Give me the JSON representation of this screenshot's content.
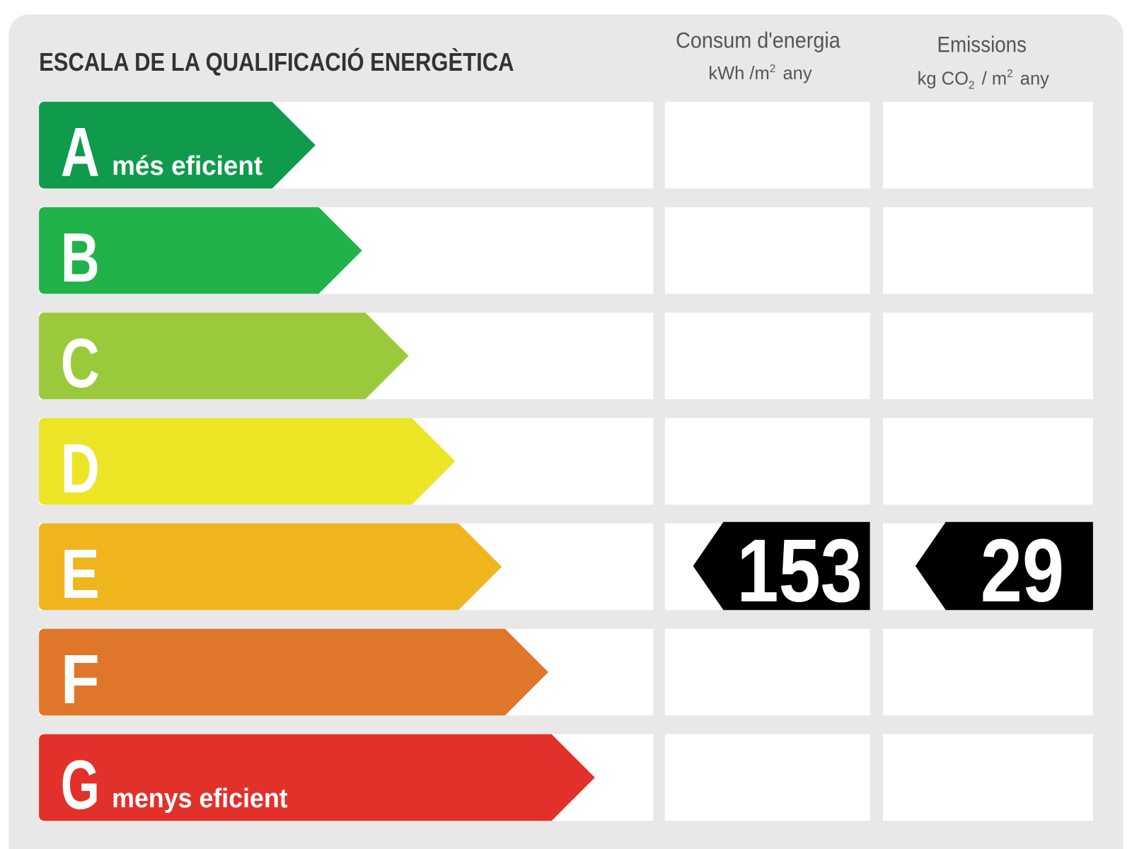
{
  "title": "ESCALA DE LA QUALIFICACIÓ ENERGÈTICA",
  "columns": {
    "consumption": {
      "title": "Consum d'energia",
      "unit": [
        "kWh /m",
        "2",
        "any"
      ]
    },
    "emissions": {
      "title": "Emissions",
      "unit": [
        "kg CO",
        "2",
        "/ m",
        "2",
        "any"
      ]
    }
  },
  "classes": [
    {
      "letter": "A",
      "label": "més eficient",
      "color": "#0f9a4c"
    },
    {
      "letter": "B",
      "color": "#21b24b"
    },
    {
      "letter": "C",
      "color": "#9bc93c"
    },
    {
      "letter": "D",
      "color": "#ebe525"
    },
    {
      "letter": "E",
      "color": "#f0b41c"
    },
    {
      "letter": "F",
      "color": "#e0762a"
    },
    {
      "letter": "G",
      "label": "menys eficient",
      "color": "#e2312a"
    }
  ],
  "rating": {
    "consumption": {
      "class": "E",
      "value": 153
    },
    "emissions": {
      "class": "E",
      "value": 29
    }
  }
}
